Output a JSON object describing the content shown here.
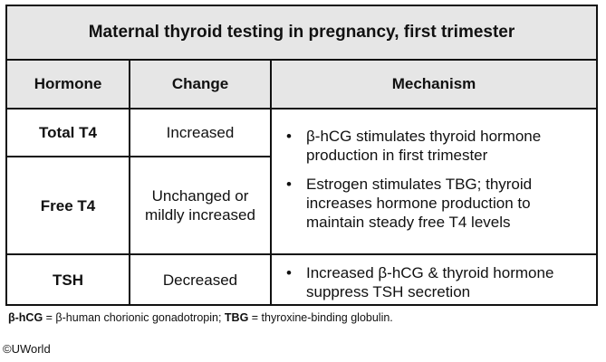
{
  "title": "Maternal thyroid testing in pregnancy, first trimester",
  "headers": {
    "hormone": "Hormone",
    "change": "Change",
    "mechanism": "Mechanism"
  },
  "rows": [
    {
      "hormone": "Total T4",
      "change": "Increased"
    },
    {
      "hormone": "Free T4",
      "change": "Unchanged or mildly increased"
    },
    {
      "hormone": "TSH",
      "change": "Decreased"
    }
  ],
  "mechanisms": [
    {
      "bullet": "•",
      "text": "β-hCG stimulates thyroid hormone production in first trimester"
    },
    {
      "bullet": "•",
      "text": "Estrogen stimulates TBG; thyroid increases hormone production to maintain steady free T4 levels"
    },
    {
      "bullet": "•",
      "text": "Increased β-hCG & thyroid hormone suppress TSH secretion"
    }
  ],
  "footnote": {
    "term1": "β-hCG",
    "def1": " = β-human chorionic gonadotropin; ",
    "term2": "TBG",
    "def2": " = thyroxine-binding globulin."
  },
  "credit": "©UWorld"
}
